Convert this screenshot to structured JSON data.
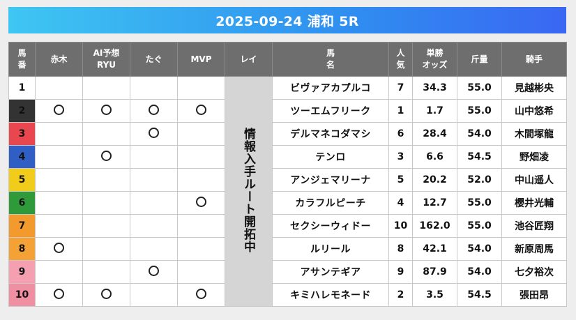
{
  "header": {
    "title": "2025-09-24 浦和 5R"
  },
  "columns": {
    "umaban": [
      "馬",
      "番"
    ],
    "akagi": "赤木",
    "ai": [
      "AI予想",
      "RYU"
    ],
    "tagu": "たぐ",
    "mvp": "MVP",
    "rei": "レイ",
    "horse": [
      "馬",
      "名"
    ],
    "popularity": [
      "人",
      "気"
    ],
    "odds": [
      "単勝",
      "オッズ"
    ],
    "weight": "斤量",
    "jockey": "騎手"
  },
  "rei_note": "情報入手ルート開拓中",
  "mark_symbol": "○",
  "frame_colors": {
    "1": "#ffffff",
    "2": "#333333",
    "3": "#e8474f",
    "4": "#2f5fc4",
    "5": "#f2cc1b",
    "6": "#2f9a3a",
    "7": "#f39a2e",
    "8": "#f4a236",
    "9": "#f4a0b0",
    "10": "#f08ea2"
  },
  "rows": [
    {
      "num": "1",
      "akagi": false,
      "ai": false,
      "tagu": false,
      "mvp": false,
      "horse": "ビヴァアカプルコ",
      "pop": "7",
      "odds": "34.3",
      "weight": "55.0",
      "jockey": "見越彬央"
    },
    {
      "num": "2",
      "akagi": true,
      "ai": true,
      "tagu": true,
      "mvp": true,
      "horse": "ツーエムフリーク",
      "pop": "1",
      "odds": "1.7",
      "weight": "55.0",
      "jockey": "山中悠希"
    },
    {
      "num": "3",
      "akagi": false,
      "ai": false,
      "tagu": true,
      "mvp": false,
      "horse": "デルマネコダマシ",
      "pop": "6",
      "odds": "28.4",
      "weight": "54.0",
      "jockey": "木間塚龍"
    },
    {
      "num": "4",
      "akagi": false,
      "ai": true,
      "tagu": false,
      "mvp": false,
      "horse": "テンロ",
      "pop": "3",
      "odds": "6.6",
      "weight": "54.5",
      "jockey": "野畑凌"
    },
    {
      "num": "5",
      "akagi": false,
      "ai": false,
      "tagu": false,
      "mvp": false,
      "horse": "アンジェマリーナ",
      "pop": "5",
      "odds": "20.2",
      "weight": "52.0",
      "jockey": "中山遥人"
    },
    {
      "num": "6",
      "akagi": false,
      "ai": false,
      "tagu": false,
      "mvp": true,
      "horse": "カラフルピーチ",
      "pop": "4",
      "odds": "12.7",
      "weight": "55.0",
      "jockey": "櫻井光輔"
    },
    {
      "num": "7",
      "akagi": false,
      "ai": false,
      "tagu": false,
      "mvp": false,
      "horse": "セクシーウィドー",
      "pop": "10",
      "odds": "162.0",
      "weight": "55.0",
      "jockey": "池谷匠翔"
    },
    {
      "num": "8",
      "akagi": true,
      "ai": false,
      "tagu": false,
      "mvp": false,
      "horse": "ルリール",
      "pop": "8",
      "odds": "42.1",
      "weight": "54.0",
      "jockey": "新原周馬"
    },
    {
      "num": "9",
      "akagi": false,
      "ai": false,
      "tagu": true,
      "mvp": false,
      "horse": "アサンテギア",
      "pop": "9",
      "odds": "87.9",
      "weight": "54.0",
      "jockey": "七夕裕次"
    },
    {
      "num": "10",
      "akagi": true,
      "ai": true,
      "tagu": false,
      "mvp": true,
      "horse": "キミハレモネード",
      "pop": "2",
      "odds": "3.5",
      "weight": "54.5",
      "jockey": "張田昂"
    }
  ]
}
